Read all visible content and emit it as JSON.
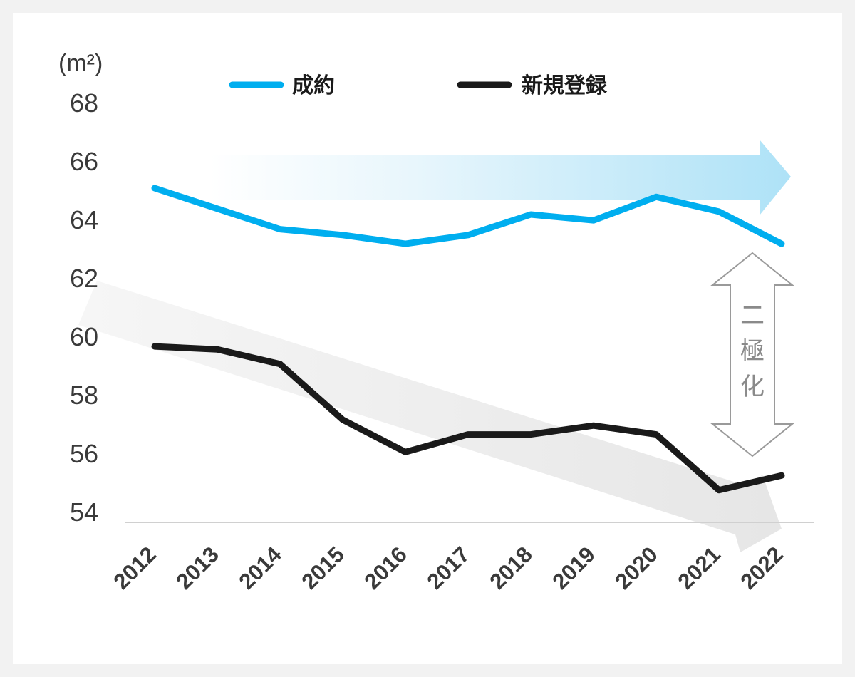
{
  "chart_data": {
    "type": "line",
    "unit_label": "(m²)",
    "categories": [
      "2012",
      "2013",
      "2014",
      "2015",
      "2016",
      "2017",
      "2018",
      "2019",
      "2020",
      "2021",
      "2022"
    ],
    "yticks": [
      68,
      66,
      64,
      62,
      60,
      58,
      56,
      54
    ],
    "ylim": [
      54,
      68
    ],
    "grid": false,
    "legend_position": "top",
    "series": [
      {
        "name": "成約",
        "color": "#00aeef",
        "values": [
          65.4,
          64.7,
          64.0,
          63.8,
          63.5,
          63.8,
          64.5,
          64.3,
          65.1,
          64.6,
          63.5
        ]
      },
      {
        "name": "新規登録",
        "color": "#1a1a1a",
        "values": [
          60.0,
          59.9,
          59.4,
          57.5,
          56.4,
          57.0,
          57.0,
          57.3,
          57.0,
          55.1,
          55.6
        ]
      }
    ],
    "annotations": [
      {
        "text": "二極化"
      }
    ]
  }
}
